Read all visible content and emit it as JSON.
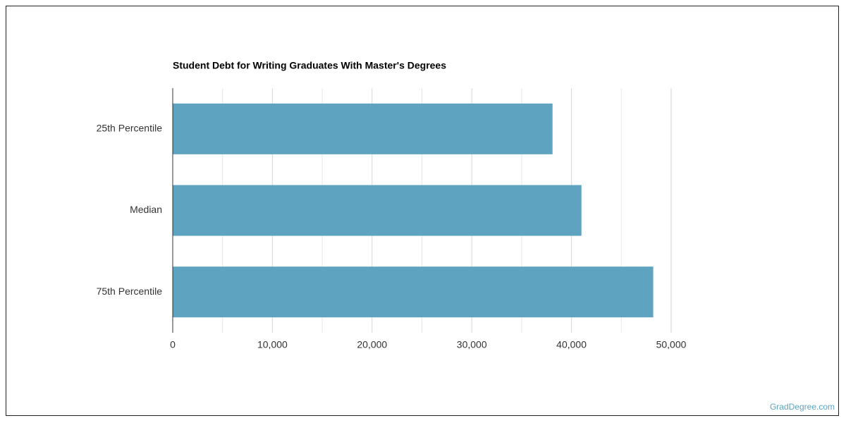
{
  "chart_data": {
    "type": "hbar",
    "title": "Student Debt for Writing Graduates With Master's Degrees",
    "categories": [
      "25th Percentile",
      "Median",
      "75th Percentile"
    ],
    "values": [
      38100,
      41000,
      48200
    ],
    "color": "#5ea3c0",
    "xlim": [
      0,
      50000
    ],
    "xticks": [
      0,
      {
        "value": 10000,
        "label": "10,000"
      },
      {
        "value": 20000,
        "label": "20,000"
      },
      {
        "value": 30000,
        "label": "30,000"
      },
      {
        "value": 40000,
        "label": "40,000"
      },
      {
        "value": 50000,
        "label": "50,000"
      }
    ],
    "minor_xticks": [
      5000,
      15000,
      25000,
      35000,
      45000
    ],
    "grid": true,
    "source": "GradDegree.com"
  }
}
